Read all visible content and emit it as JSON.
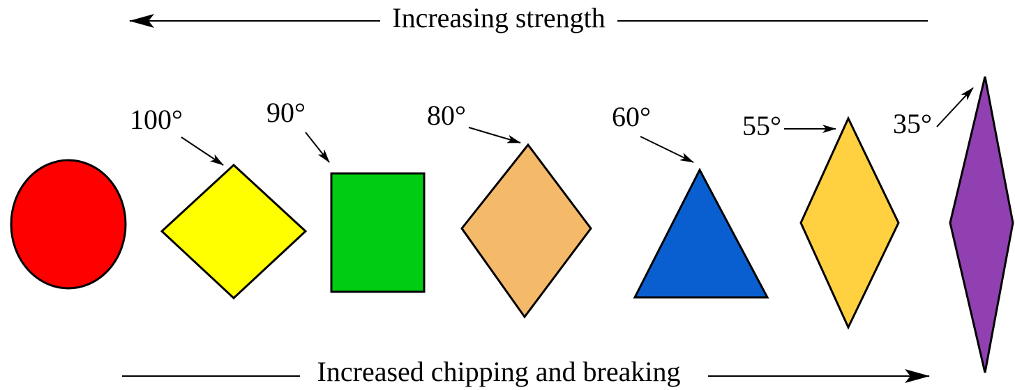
{
  "top_arrow": {
    "label": "Increasing strength"
  },
  "bottom_arrow": {
    "label": "Increased chipping and breaking"
  },
  "angles": [
    "100°",
    "90°",
    "80°",
    "60°",
    "55°",
    "35°"
  ]
}
